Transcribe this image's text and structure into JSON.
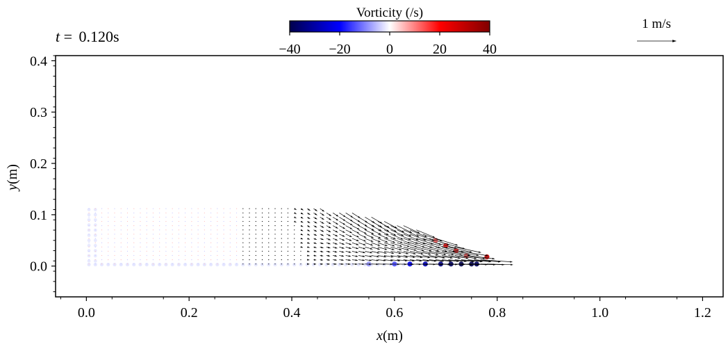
{
  "chart_data": {
    "type": "scatter",
    "time_label": {
      "var": "t",
      "eq": " = ",
      "value": "0.120s"
    },
    "xlabel": {
      "var": "x",
      "unit": "(m)"
    },
    "ylabel": {
      "var": "y",
      "unit": "(m)"
    },
    "xlim": [
      -0.06,
      1.24
    ],
    "ylim": [
      -0.06,
      0.41
    ],
    "xticks": [
      0.0,
      0.2,
      0.4,
      0.6,
      0.8,
      1.0,
      1.2
    ],
    "xtick_labels": [
      "0.0",
      "0.2",
      "0.4",
      "0.6",
      "0.8",
      "1.0",
      "1.2"
    ],
    "yticks": [
      0.0,
      0.1,
      0.2,
      0.3,
      0.4
    ],
    "ytick_labels": [
      "0.0",
      "0.1",
      "0.2",
      "0.3",
      "0.4"
    ],
    "grid": false,
    "colorbar": {
      "title": "Vorticity (/s)",
      "range": [
        -40,
        40
      ],
      "ticks": [
        -40,
        -20,
        0,
        20,
        40
      ],
      "tick_labels": [
        "−40",
        "−20",
        "0",
        "20",
        "40"
      ],
      "colormap": "seismic",
      "stops": [
        "#00004c",
        "#0000ff",
        "#ffffff",
        "#ff0000",
        "#800000"
      ]
    },
    "reference_vector": {
      "label": "1 m/s",
      "magnitude": 1.0
    },
    "fluid_region": {
      "x": [
        0.0,
        0.9
      ],
      "y_top": 0.115,
      "front_x": 0.79
    },
    "velocity_field_grid": {
      "dx": 0.0125,
      "dy": 0.0083
    },
    "vorticity_blobs": [
      {
        "x": 0.55,
        "y": 0.004,
        "w": -8
      },
      {
        "x": 0.6,
        "y": 0.004,
        "w": -14
      },
      {
        "x": 0.63,
        "y": 0.004,
        "w": -22
      },
      {
        "x": 0.66,
        "y": 0.004,
        "w": -28
      },
      {
        "x": 0.69,
        "y": 0.004,
        "w": -34
      },
      {
        "x": 0.71,
        "y": 0.004,
        "w": -38
      },
      {
        "x": 0.73,
        "y": 0.004,
        "w": -40
      },
      {
        "x": 0.75,
        "y": 0.004,
        "w": -40
      },
      {
        "x": 0.76,
        "y": 0.004,
        "w": -38
      },
      {
        "x": 0.68,
        "y": 0.05,
        "w": 12
      },
      {
        "x": 0.7,
        "y": 0.04,
        "w": 18
      },
      {
        "x": 0.72,
        "y": 0.03,
        "w": 16
      },
      {
        "x": 0.74,
        "y": 0.02,
        "w": 12
      },
      {
        "x": 0.78,
        "y": 0.018,
        "w": 30
      }
    ]
  }
}
